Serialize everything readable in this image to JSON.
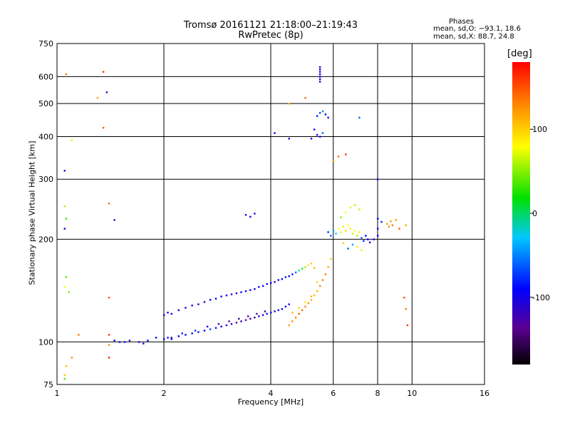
{
  "header": {
    "title_line1": "Tromsø 20161121 21:18:00–21:19:43",
    "title_line2": "RwPretec (8p)"
  },
  "stats": {
    "heading": "Phases",
    "line_o": "mean, sd,O: −93.1, 18.6",
    "line_x": "mean, sd,X:  88.7, 24.8"
  },
  "colorbar": {
    "unit": "[deg]",
    "ticks": [
      {
        "value": 100,
        "label": "100"
      },
      {
        "value": 0,
        "label": "0"
      },
      {
        "value": -100,
        "label": "-100"
      }
    ],
    "range": [
      -180,
      180
    ]
  },
  "chart_data": {
    "type": "scatter",
    "xlabel": "Frequency [MHz]",
    "ylabel": "Stationary phase Virtual Height [km]",
    "x_scale": "log",
    "y_scale": "log",
    "xlim": [
      1,
      16
    ],
    "ylim": [
      75,
      750
    ],
    "x_ticks": [
      {
        "value": 1,
        "label": "1"
      },
      {
        "value": 2,
        "label": "2"
      },
      {
        "value": 4,
        "label": "4"
      },
      {
        "value": 6,
        "label": "6"
      },
      {
        "value": 8,
        "label": "8"
      },
      {
        "value": 10,
        "label": "10"
      },
      {
        "value": 16,
        "label": "16"
      }
    ],
    "y_ticks": [
      {
        "value": 75,
        "label": "75"
      },
      {
        "value": 100,
        "label": "100"
      },
      {
        "value": 200,
        "label": "200"
      },
      {
        "value": 300,
        "label": "300"
      },
      {
        "value": 400,
        "label": "400"
      },
      {
        "value": 500,
        "label": "500"
      },
      {
        "value": 600,
        "label": "600"
      },
      {
        "value": 750,
        "label": "750"
      }
    ],
    "grid": true,
    "color_variable": "phase [deg]",
    "points": [
      [
        1.45,
        101,
        -95
      ],
      [
        1.5,
        100,
        -100
      ],
      [
        1.55,
        100,
        -90
      ],
      [
        1.6,
        101,
        -110
      ],
      [
        1.7,
        100,
        -95
      ],
      [
        1.75,
        99,
        -100
      ],
      [
        1.8,
        101,
        -90
      ],
      [
        1.9,
        103,
        -100
      ],
      [
        2.0,
        102,
        -95
      ],
      [
        2.05,
        103,
        -85
      ],
      [
        2.1,
        102,
        -100
      ],
      [
        2.2,
        104,
        -90
      ],
      [
        2.3,
        105,
        -95
      ],
      [
        2.4,
        106,
        -100
      ],
      [
        2.5,
        107,
        -85
      ],
      [
        2.6,
        108,
        -90
      ],
      [
        2.7,
        109,
        -70
      ],
      [
        2.8,
        110,
        -95
      ],
      [
        2.9,
        111,
        -100
      ],
      [
        3.0,
        112,
        -105
      ],
      [
        3.1,
        113,
        -110
      ],
      [
        3.2,
        114,
        -130
      ],
      [
        3.3,
        115,
        -120
      ],
      [
        3.4,
        116,
        -135
      ],
      [
        3.5,
        117,
        -125
      ],
      [
        3.6,
        118,
        -120
      ],
      [
        3.7,
        119,
        -110
      ],
      [
        3.8,
        120,
        -100
      ],
      [
        3.9,
        121,
        -95
      ],
      [
        4.0,
        122,
        -90
      ],
      [
        4.1,
        123,
        -95
      ],
      [
        4.2,
        124,
        -100
      ],
      [
        4.3,
        125,
        -100
      ],
      [
        4.4,
        127,
        -95
      ],
      [
        4.5,
        129,
        -100
      ],
      [
        2.1,
        103,
        -120
      ],
      [
        2.25,
        106,
        -80
      ],
      [
        2.45,
        108,
        -75
      ],
      [
        2.65,
        111,
        -85
      ],
      [
        2.85,
        113,
        -130
      ],
      [
        3.05,
        115,
        -140
      ],
      [
        3.25,
        117,
        -130
      ],
      [
        3.45,
        119,
        -140
      ],
      [
        3.65,
        121,
        -135
      ],
      [
        3.85,
        123,
        -110
      ],
      [
        2.0,
        120,
        -110
      ],
      [
        2.05,
        122,
        -100
      ],
      [
        2.1,
        121,
        -95
      ],
      [
        2.2,
        124,
        -105
      ],
      [
        2.3,
        126,
        -100
      ],
      [
        2.4,
        128,
        -110
      ],
      [
        2.5,
        129,
        -100
      ],
      [
        2.6,
        131,
        -95
      ],
      [
        2.7,
        133,
        -100
      ],
      [
        2.8,
        134,
        -90
      ],
      [
        2.9,
        136,
        -95
      ],
      [
        3.0,
        137,
        -100
      ],
      [
        3.1,
        138,
        -105
      ],
      [
        3.2,
        139,
        -100
      ],
      [
        3.3,
        140,
        -95
      ],
      [
        3.4,
        141,
        -100
      ],
      [
        3.5,
        142,
        -105
      ],
      [
        3.6,
        143,
        -95
      ],
      [
        3.7,
        145,
        -100
      ],
      [
        3.8,
        146,
        -90
      ],
      [
        3.9,
        148,
        -95
      ],
      [
        4.0,
        149,
        -100
      ],
      [
        4.1,
        150,
        -95
      ],
      [
        4.2,
        152,
        -90
      ],
      [
        4.3,
        153,
        -100
      ],
      [
        4.4,
        155,
        -85
      ],
      [
        4.5,
        156,
        -90
      ],
      [
        4.6,
        158,
        -80
      ],
      [
        4.7,
        160,
        -60
      ],
      [
        4.8,
        162,
        -20
      ],
      [
        4.9,
        164,
        10
      ],
      [
        5.0,
        166,
        40
      ],
      [
        5.1,
        168,
        70
      ],
      [
        5.2,
        170,
        90
      ],
      [
        5.3,
        165,
        100
      ],
      [
        4.5,
        112,
        110
      ],
      [
        4.6,
        115,
        120
      ],
      [
        4.7,
        118,
        130
      ],
      [
        4.8,
        121,
        140
      ],
      [
        4.9,
        124,
        135
      ],
      [
        5.0,
        127,
        125
      ],
      [
        5.1,
        130,
        115
      ],
      [
        5.2,
        133,
        105
      ],
      [
        5.3,
        137,
        95
      ],
      [
        5.4,
        141,
        100
      ],
      [
        5.5,
        146,
        120
      ],
      [
        5.6,
        152,
        130
      ],
      [
        5.7,
        158,
        125
      ],
      [
        5.8,
        166,
        110
      ],
      [
        5.9,
        175,
        90
      ],
      [
        4.6,
        122,
        95
      ],
      [
        4.8,
        126,
        85
      ],
      [
        5.0,
        131,
        75
      ],
      [
        5.2,
        136,
        100
      ],
      [
        5.4,
        150,
        80
      ],
      [
        5.8,
        210,
        -80
      ],
      [
        5.9,
        205,
        -60
      ],
      [
        6.0,
        212,
        -40
      ],
      [
        6.1,
        208,
        -30
      ],
      [
        6.2,
        215,
        60
      ],
      [
        6.3,
        210,
        70
      ],
      [
        6.4,
        218,
        50
      ],
      [
        6.5,
        212,
        80
      ],
      [
        6.6,
        220,
        60
      ],
      [
        6.7,
        215,
        70
      ],
      [
        6.8,
        208,
        50
      ],
      [
        6.9,
        212,
        60
      ],
      [
        7.0,
        205,
        40
      ],
      [
        7.1,
        210,
        70
      ],
      [
        7.2,
        202,
        -60
      ],
      [
        7.3,
        198,
        -80
      ],
      [
        7.4,
        205,
        -90
      ],
      [
        7.5,
        200,
        -100
      ],
      [
        7.6,
        196,
        -110
      ],
      [
        7.8,
        200,
        -100
      ],
      [
        8.0,
        205,
        -95
      ],
      [
        8.0,
        215,
        -100
      ],
      [
        8.0,
        230,
        -90
      ],
      [
        8.2,
        225,
        -80
      ],
      [
        8.5,
        222,
        110
      ],
      [
        8.6,
        218,
        120
      ],
      [
        8.7,
        226,
        110
      ],
      [
        8.8,
        220,
        130
      ],
      [
        9.0,
        228,
        120
      ],
      [
        9.2,
        215,
        140
      ],
      [
        6.5,
        240,
        60
      ],
      [
        6.7,
        248,
        50
      ],
      [
        6.9,
        252,
        40
      ],
      [
        7.1,
        245,
        45
      ],
      [
        6.3,
        232,
        30
      ],
      [
        7.0,
        190,
        70
      ],
      [
        7.2,
        186,
        50
      ],
      [
        6.8,
        193,
        -40
      ],
      [
        6.6,
        188,
        -60
      ],
      [
        6.4,
        195,
        90
      ],
      [
        5.5,
        600,
        -100
      ],
      [
        5.5,
        610,
        -100
      ],
      [
        5.5,
        620,
        -100
      ],
      [
        5.5,
        630,
        -100
      ],
      [
        5.5,
        640,
        -100
      ],
      [
        5.5,
        590,
        -100
      ],
      [
        5.5,
        580,
        -100
      ],
      [
        5.4,
        460,
        -80
      ],
      [
        5.5,
        470,
        -70
      ],
      [
        5.6,
        475,
        -50
      ],
      [
        5.7,
        465,
        -90
      ],
      [
        5.8,
        455,
        -100
      ],
      [
        5.3,
        420,
        -100
      ],
      [
        5.4,
        405,
        -110
      ],
      [
        5.5,
        400,
        -100
      ],
      [
        5.2,
        395,
        -90
      ],
      [
        5.6,
        410,
        -60
      ],
      [
        4.5,
        395,
        -100
      ],
      [
        4.1,
        410,
        -100
      ],
      [
        6.0,
        340,
        110
      ],
      [
        6.2,
        350,
        140
      ],
      [
        6.5,
        355,
        160
      ],
      [
        3.4,
        236,
        -100
      ],
      [
        3.5,
        233,
        -110
      ],
      [
        3.6,
        238,
        -100
      ],
      [
        8.0,
        300,
        -100
      ],
      [
        7.1,
        455,
        -60
      ],
      [
        4.5,
        500,
        100
      ],
      [
        5.0,
        520,
        140
      ],
      [
        1.06,
        610,
        130
      ],
      [
        1.05,
        318,
        -100
      ],
      [
        1.06,
        230,
        10
      ],
      [
        1.05,
        250,
        40
      ],
      [
        1.05,
        215,
        -100
      ],
      [
        1.1,
        390,
        50
      ],
      [
        1.06,
        155,
        20
      ],
      [
        1.05,
        145,
        60
      ],
      [
        1.08,
        140,
        30
      ],
      [
        1.06,
        85,
        100
      ],
      [
        1.05,
        80,
        90
      ],
      [
        1.05,
        78,
        20
      ],
      [
        1.1,
        90,
        120
      ],
      [
        1.15,
        105,
        130
      ],
      [
        1.35,
        620,
        160
      ],
      [
        1.35,
        425,
        140
      ],
      [
        1.3,
        520,
        110
      ],
      [
        1.38,
        540,
        -120
      ],
      [
        1.4,
        255,
        130
      ],
      [
        1.45,
        228,
        -120
      ],
      [
        1.4,
        135,
        150
      ],
      [
        1.4,
        105,
        160
      ],
      [
        1.4,
        98,
        120
      ],
      [
        1.4,
        90,
        170
      ],
      [
        9.5,
        135,
        150
      ],
      [
        9.6,
        125,
        130
      ],
      [
        9.7,
        112,
        160
      ],
      [
        9.6,
        220,
        110
      ]
    ]
  }
}
